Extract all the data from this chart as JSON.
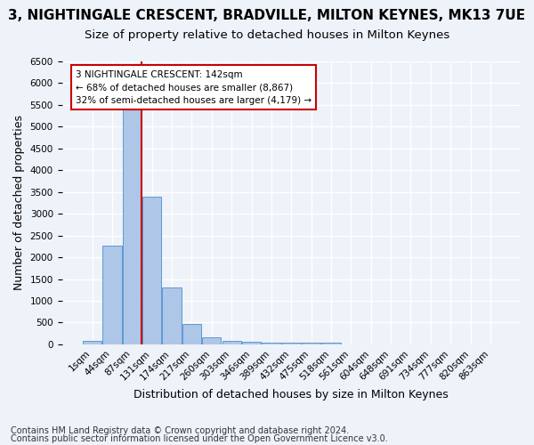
{
  "title": "3, NIGHTINGALE CRESCENT, BRADVILLE, MILTON KEYNES, MK13 7UE",
  "subtitle": "Size of property relative to detached houses in Milton Keynes",
  "xlabel": "Distribution of detached houses by size in Milton Keynes",
  "ylabel": "Number of detached properties",
  "footer1": "Contains HM Land Registry data © Crown copyright and database right 2024.",
  "footer2": "Contains public sector information licensed under the Open Government Licence v3.0.",
  "bins": [
    "1sqm",
    "44sqm",
    "87sqm",
    "131sqm",
    "174sqm",
    "217sqm",
    "260sqm",
    "303sqm",
    "346sqm",
    "389sqm",
    "432sqm",
    "475sqm",
    "518sqm",
    "561sqm",
    "604sqm",
    "648sqm",
    "691sqm",
    "734sqm",
    "777sqm",
    "820sqm",
    "863sqm"
  ],
  "values": [
    75,
    2270,
    5430,
    3390,
    1310,
    475,
    165,
    90,
    60,
    50,
    40,
    35,
    30,
    0,
    0,
    0,
    0,
    0,
    0,
    0,
    0
  ],
  "bar_color": "#aec6e8",
  "bar_edge_color": "#5b9bd5",
  "annotation_title": "3 NIGHTINGALE CRESCENT: 142sqm",
  "annotation_line1": "← 68% of detached houses are smaller (8,867)",
  "annotation_line2": "32% of semi-detached houses are larger (4,179) →",
  "annotation_box_color": "#ffffff",
  "annotation_box_edge": "#cc0000",
  "property_line_color": "#cc0000",
  "ylim": [
    0,
    6500
  ],
  "yticks": [
    0,
    500,
    1000,
    1500,
    2000,
    2500,
    3000,
    3500,
    4000,
    4500,
    5000,
    5500,
    6000,
    6500
  ],
  "bg_color": "#eef2f9",
  "grid_color": "#ffffff",
  "title_fontsize": 11,
  "subtitle_fontsize": 9.5,
  "axis_fontsize": 9,
  "tick_fontsize": 7.5,
  "footer_fontsize": 7
}
